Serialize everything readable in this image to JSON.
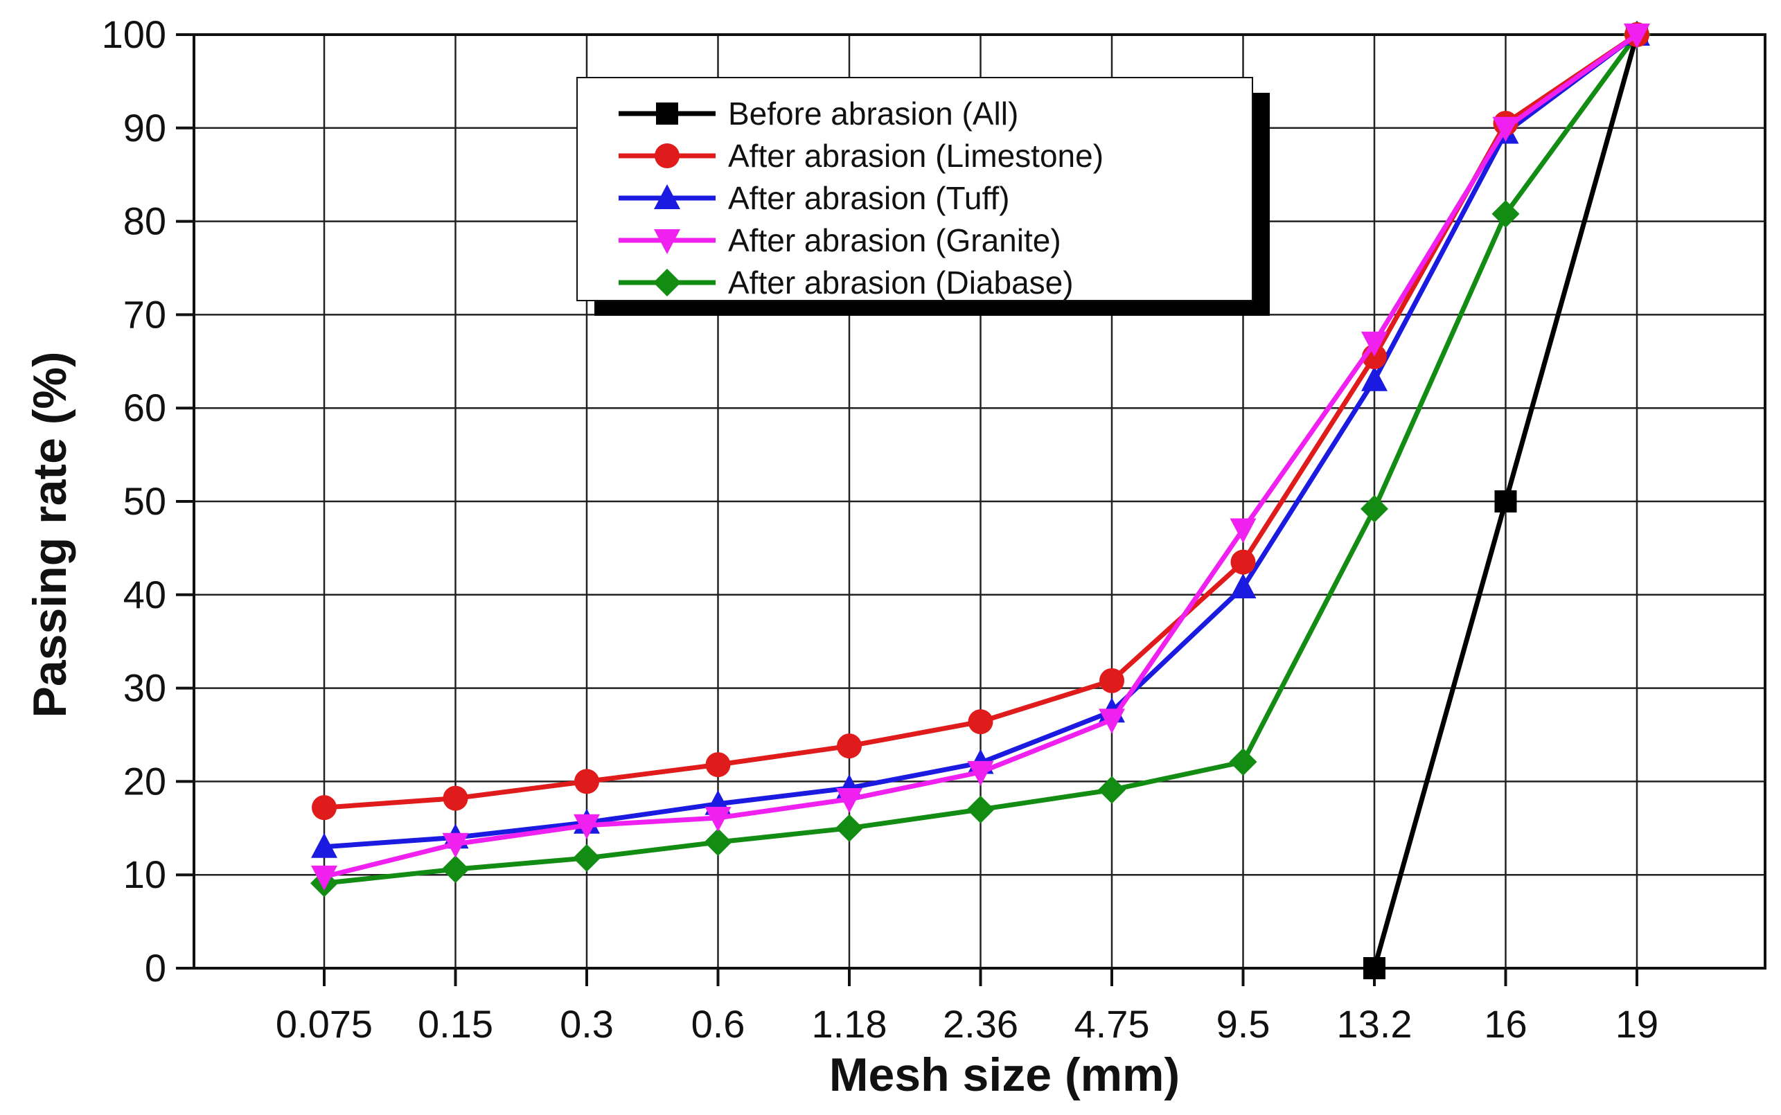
{
  "chart_data": {
    "type": "line",
    "title": "",
    "xlabel": "Mesh size (mm)",
    "ylabel": "Passing rate (%)",
    "x_scale": "categorical",
    "categories": [
      "0.075",
      "0.15",
      "0.3",
      "0.6",
      "1.18",
      "2.36",
      "4.75",
      "9.5",
      "13.2",
      "16",
      "19"
    ],
    "ylim": [
      0,
      100
    ],
    "yticks": [
      0,
      10,
      20,
      30,
      40,
      50,
      60,
      70,
      80,
      90,
      100
    ],
    "grid": true,
    "legend_position": "top-center",
    "series": [
      {
        "name": "Before abrasion (All)",
        "color": "#000000",
        "marker": "square",
        "x": [
          "13.2",
          "16",
          "19"
        ],
        "values": [
          0,
          50,
          100
        ]
      },
      {
        "name": "After abrasion (Limestone)",
        "color": "#e01b1b",
        "marker": "circle",
        "x": [
          "0.075",
          "0.15",
          "0.3",
          "0.6",
          "1.18",
          "2.36",
          "4.75",
          "9.5",
          "13.2",
          "16",
          "19"
        ],
        "values": [
          17.2,
          18.2,
          20.0,
          21.8,
          23.8,
          26.4,
          30.8,
          43.5,
          65.5,
          90.5,
          100
        ]
      },
      {
        "name": "After abrasion (Tuff)",
        "color": "#1a1ae0",
        "marker": "triangle-up",
        "x": [
          "0.075",
          "0.15",
          "0.3",
          "0.6",
          "1.18",
          "2.36",
          "4.75",
          "9.5",
          "13.2",
          "16",
          "19"
        ],
        "values": [
          13.0,
          14.0,
          15.6,
          17.6,
          19.3,
          22.0,
          27.5,
          40.8,
          63.0,
          89.5,
          100
        ]
      },
      {
        "name": "After abrasion (Granite)",
        "color": "#f020f0",
        "marker": "triangle-down",
        "x": [
          "0.075",
          "0.15",
          "0.3",
          "0.6",
          "1.18",
          "2.36",
          "4.75",
          "9.5",
          "13.2",
          "16",
          "19"
        ],
        "values": [
          9.8,
          13.3,
          15.3,
          16.1,
          18.1,
          21.0,
          26.6,
          47.0,
          67.0,
          90.0,
          100
        ]
      },
      {
        "name": "After abrasion (Diabase)",
        "color": "#128c12",
        "marker": "diamond",
        "x": [
          "0.075",
          "0.15",
          "0.3",
          "0.6",
          "1.18",
          "2.36",
          "4.75",
          "9.5",
          "13.2",
          "16",
          "19"
        ],
        "values": [
          9.1,
          10.6,
          11.8,
          13.5,
          15.0,
          17.0,
          19.1,
          22.1,
          49.2,
          80.8,
          100
        ]
      }
    ]
  }
}
